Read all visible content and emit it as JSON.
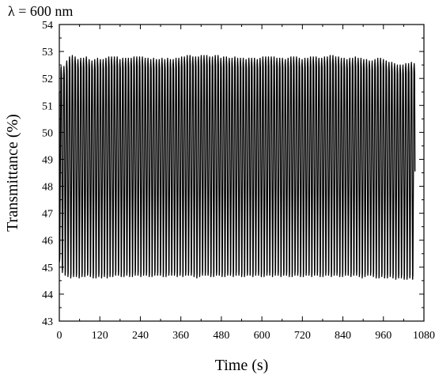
{
  "chart_data": {
    "type": "line",
    "title": "",
    "annotation": "λ = 600 nm",
    "xlabel": "Time (s)",
    "ylabel": "Transmittance (%)",
    "xlim": [
      0,
      1080
    ],
    "ylim": [
      43,
      54
    ],
    "x_ticks": [
      0,
      120,
      240,
      360,
      480,
      600,
      720,
      840,
      960,
      1080
    ],
    "y_ticks": [
      43,
      44,
      45,
      46,
      47,
      48,
      49,
      50,
      51,
      52,
      53,
      54
    ],
    "grid": false,
    "line_color": "#000000",
    "series": [
      {
        "name": "",
        "period_s": 8.3,
        "start_x": 0,
        "end_x": 1060,
        "start_value": 51.5,
        "peaks": [
          52.45,
          52.45,
          52.65,
          52.8,
          52.85,
          52.8,
          52.7,
          52.75,
          52.75,
          52.8,
          52.7,
          52.65,
          52.7,
          52.75,
          52.7,
          52.7,
          52.75,
          52.8,
          52.8,
          52.8,
          52.8,
          52.7,
          52.75,
          52.75,
          52.75,
          52.75,
          52.8,
          52.8,
          52.8,
          52.8,
          52.75,
          52.75,
          52.7,
          52.75,
          52.7,
          52.7,
          52.75,
          52.7,
          52.75,
          52.7,
          52.7,
          52.75,
          52.75,
          52.8,
          52.8,
          52.85,
          52.85,
          52.8,
          52.8,
          52.8,
          52.85,
          52.85,
          52.85,
          52.8,
          52.8,
          52.85,
          52.85,
          52.75,
          52.8,
          52.8,
          52.75,
          52.75,
          52.8,
          52.75,
          52.75,
          52.75,
          52.7,
          52.75,
          52.75,
          52.75,
          52.7,
          52.75,
          52.8,
          52.8,
          52.8,
          52.8,
          52.8,
          52.75,
          52.75,
          52.75,
          52.7,
          52.75,
          52.8,
          52.8,
          52.8,
          52.75,
          52.7,
          52.75,
          52.75,
          52.8,
          52.8,
          52.8,
          52.75,
          52.75,
          52.8,
          52.8,
          52.85,
          52.85,
          52.8,
          52.8,
          52.75,
          52.75,
          52.7,
          52.75,
          52.75,
          52.8,
          52.75,
          52.75,
          52.7,
          52.7,
          52.65,
          52.65,
          52.7,
          52.75,
          52.75,
          52.7,
          52.65,
          52.6,
          52.6,
          52.55,
          52.5,
          52.5,
          52.5,
          52.55,
          52.55,
          52.6,
          52.55
        ],
        "troughs": [
          45.2,
          44.8,
          44.7,
          44.65,
          44.6,
          44.65,
          44.65,
          44.6,
          44.65,
          44.65,
          44.7,
          44.65,
          44.6,
          44.6,
          44.65,
          44.6,
          44.65,
          44.6,
          44.65,
          44.65,
          44.7,
          44.7,
          44.65,
          44.65,
          44.7,
          44.65,
          44.65,
          44.7,
          44.7,
          44.65,
          44.7,
          44.7,
          44.65,
          44.65,
          44.7,
          44.7,
          44.7,
          44.65,
          44.65,
          44.7,
          44.7,
          44.7,
          44.65,
          44.7,
          44.65,
          44.7,
          44.7,
          44.7,
          44.65,
          44.6,
          44.65,
          44.7,
          44.7,
          44.7,
          44.65,
          44.65,
          44.7,
          44.7,
          44.65,
          44.65,
          44.7,
          44.7,
          44.65,
          44.7,
          44.7,
          44.65,
          44.65,
          44.7,
          44.7,
          44.65,
          44.7,
          44.7,
          44.65,
          44.65,
          44.7,
          44.7,
          44.65,
          44.7,
          44.7,
          44.65,
          44.7,
          44.7,
          44.65,
          44.65,
          44.7,
          44.7,
          44.65,
          44.65,
          44.7,
          44.7,
          44.65,
          44.7,
          44.7,
          44.65,
          44.65,
          44.7,
          44.7,
          44.65,
          44.7,
          44.7,
          44.65,
          44.65,
          44.7,
          44.7,
          44.65,
          44.7,
          44.7,
          44.65,
          44.6,
          44.65,
          44.7,
          44.7,
          44.65,
          44.6,
          44.6,
          44.65,
          44.6,
          44.6,
          44.65,
          44.6,
          44.55,
          44.6,
          44.6,
          44.55,
          44.55,
          44.6,
          44.55
        ]
      }
    ]
  }
}
